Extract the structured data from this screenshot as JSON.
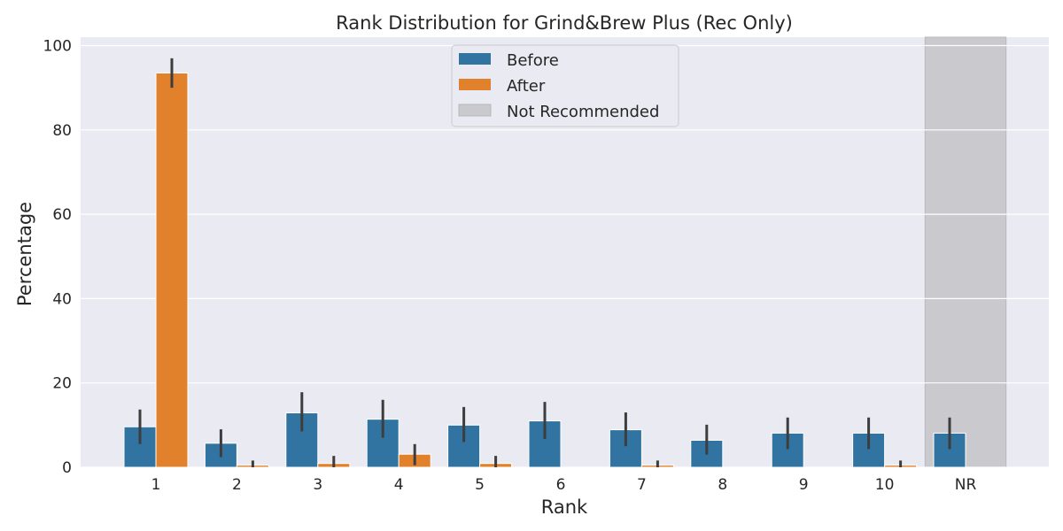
{
  "chart_data": {
    "type": "bar",
    "title": "Rank Distribution for Grind&Brew Plus (Rec Only)",
    "xlabel": "Rank",
    "ylabel": "Percentage",
    "categories": [
      "1",
      "2",
      "3",
      "4",
      "5",
      "6",
      "7",
      "8",
      "9",
      "10",
      "NR"
    ],
    "ylim": [
      0,
      102
    ],
    "yticks": [
      0,
      20,
      40,
      60,
      80,
      100
    ],
    "grid": true,
    "legend_position": "top-center",
    "highlight_category": "NR",
    "highlight_label": "Not Recommended",
    "highlight_color": "#c9c9ce",
    "series": [
      {
        "name": "Before",
        "color": "#3274a1",
        "values": [
          9.6,
          5.7,
          12.9,
          11.4,
          10.0,
          11.0,
          8.9,
          6.4,
          8.1,
          8.1,
          8.1
        ],
        "error_low": [
          5.5,
          2.4,
          8.5,
          7.0,
          6.0,
          6.7,
          5.0,
          3.0,
          4.3,
          4.3,
          4.3
        ],
        "error_high": [
          13.7,
          9.0,
          17.8,
          16.0,
          14.3,
          15.5,
          13.0,
          10.1,
          11.8,
          11.8,
          11.8
        ]
      },
      {
        "name": "After",
        "color": "#e1812c",
        "values": [
          93.5,
          0.5,
          0.9,
          3.1,
          0.9,
          0,
          0.5,
          0,
          0,
          0.5,
          0
        ],
        "error_low": [
          90.0,
          0,
          0,
          0.5,
          0,
          0,
          0,
          0,
          0,
          0,
          0
        ],
        "error_high": [
          97.0,
          1.6,
          2.7,
          5.5,
          2.7,
          0,
          1.6,
          0,
          0,
          1.6,
          0
        ]
      }
    ]
  }
}
